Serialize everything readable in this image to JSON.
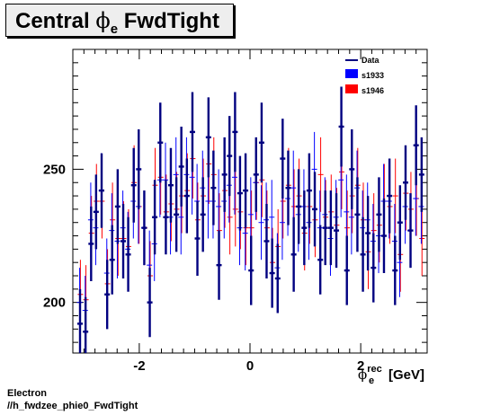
{
  "title": {
    "main": "Central",
    "phi": "ϕ",
    "sub": "e",
    "rest": "FwdTight"
  },
  "footer": {
    "line1": "Electron",
    "line2": "//h_fwdzee_phie0_FwdTight"
  },
  "colors": {
    "data": "#000080",
    "s1933": "#0000ff",
    "s1946": "#ff0000"
  },
  "chart_data": {
    "type": "scatter",
    "title": "Central ϕe FwdTight",
    "xlabel": "ϕe rec [GeV]",
    "xlabel_parts": {
      "phi": "ϕ",
      "sup": "rec",
      "sub": "e",
      "unit": "[GeV]"
    },
    "ylabel": "",
    "xlim": [
      -3.2,
      3.2
    ],
    "ylim": [
      181,
      295
    ],
    "x_ticks": [
      -2,
      0,
      2
    ],
    "x_tick_labels": [
      "-2",
      "0",
      "2"
    ],
    "y_ticks": [
      200,
      250
    ],
    "y_tick_labels": [
      "200",
      "250"
    ],
    "legend": {
      "position": "top-right",
      "entries": [
        "Data",
        "s1933",
        "s1946"
      ]
    },
    "x": [
      -3.07,
      -2.97,
      -2.87,
      -2.78,
      -2.68,
      -2.58,
      -2.49,
      -2.39,
      -2.29,
      -2.2,
      -2.1,
      -2.01,
      -1.91,
      -1.81,
      -1.72,
      -1.62,
      -1.52,
      -1.43,
      -1.33,
      -1.24,
      -1.14,
      -1.04,
      -0.95,
      -0.85,
      -0.75,
      -0.66,
      -0.56,
      -0.46,
      -0.37,
      -0.27,
      -0.18,
      -0.08,
      0.02,
      0.11,
      0.21,
      0.3,
      0.4,
      0.5,
      0.59,
      0.69,
      0.79,
      0.88,
      0.98,
      1.07,
      1.17,
      1.27,
      1.36,
      1.46,
      1.56,
      1.65,
      1.75,
      1.84,
      1.94,
      2.04,
      2.13,
      2.23,
      2.33,
      2.42,
      2.52,
      2.62,
      2.71,
      2.81,
      2.9,
      3.0,
      3.1
    ],
    "series": [
      {
        "name": "Data",
        "values": [
          192,
          189,
          222,
          234,
          242,
          203,
          216,
          236,
          223,
          218,
          244,
          250,
          228,
          200,
          232,
          260,
          232,
          244,
          233,
          251,
          240,
          264,
          224,
          233,
          262,
          243,
          214,
          248,
          255,
          264,
          241,
          242,
          212,
          248,
          260,
          223,
          211,
          209,
          254,
          243,
          218,
          236,
          228,
          242,
          235,
          216,
          228,
          228,
          227,
          266,
          212,
          250,
          233,
          218,
          226,
          213,
          233,
          225,
          240,
          212,
          230,
          245,
          227,
          259,
          248
        ],
        "errors": [
          13,
          13,
          14,
          14,
          14,
          13,
          13,
          14,
          14,
          14,
          14,
          15,
          14,
          13,
          14,
          15,
          14,
          14,
          14,
          15,
          14,
          15,
          14,
          14,
          15,
          14,
          13,
          14,
          15,
          15,
          14,
          14,
          13,
          14,
          15,
          14,
          13,
          13,
          15,
          14,
          14,
          14,
          14,
          14,
          14,
          13,
          14,
          14,
          14,
          15,
          13,
          15,
          14,
          14,
          14,
          13,
          14,
          14,
          14,
          13,
          14,
          14,
          14,
          15,
          14
        ]
      },
      {
        "name": "s1933",
        "values": [
          200,
          197,
          231,
          228,
          242,
          211,
          227,
          223,
          228,
          220,
          238,
          236,
          228,
          214,
          222,
          246,
          246,
          232,
          248,
          232,
          248,
          247,
          238,
          243,
          238,
          238,
          236,
          238,
          244,
          247,
          228,
          226,
          233,
          245,
          230,
          231,
          232,
          213,
          230,
          239,
          243,
          233,
          236,
          230,
          250,
          228,
          233,
          224,
          232,
          246,
          234,
          232,
          243,
          228,
          231,
          223,
          225,
          238,
          238,
          223,
          215,
          236,
          227,
          239,
          236
        ],
        "errors": [
          13,
          13,
          14,
          14,
          14,
          13,
          14,
          14,
          14,
          14,
          14,
          14,
          14,
          13,
          14,
          14,
          14,
          14,
          14,
          14,
          14,
          14,
          14,
          14,
          14,
          14,
          14,
          14,
          14,
          14,
          14,
          14,
          14,
          14,
          14,
          14,
          14,
          13,
          14,
          14,
          14,
          14,
          14,
          14,
          14,
          14,
          14,
          14,
          14,
          14,
          14,
          14,
          14,
          14,
          14,
          14,
          14,
          14,
          14,
          14,
          13,
          14,
          14,
          14,
          14
        ]
      },
      {
        "name": "s1946",
        "values": [
          203,
          201,
          226,
          238,
          238,
          207,
          231,
          224,
          224,
          221,
          245,
          236,
          228,
          210,
          244,
          247,
          234,
          237,
          235,
          240,
          242,
          254,
          231,
          240,
          252,
          248,
          227,
          242,
          232,
          235,
          234,
          228,
          228,
          245,
          246,
          228,
          215,
          221,
          238,
          244,
          236,
          240,
          226,
          236,
          231,
          248,
          232,
          234,
          229,
          249,
          228,
          240,
          244,
          231,
          219,
          227,
          229,
          238,
          236,
          240,
          218,
          241,
          235,
          239,
          224
        ],
        "errors": [
          13,
          13,
          14,
          14,
          14,
          13,
          14,
          14,
          14,
          14,
          14,
          14,
          14,
          13,
          14,
          14,
          14,
          14,
          14,
          14,
          14,
          15,
          14,
          14,
          15,
          14,
          14,
          14,
          14,
          14,
          14,
          14,
          14,
          14,
          14,
          14,
          13,
          14,
          14,
          14,
          14,
          14,
          14,
          14,
          14,
          14,
          14,
          14,
          14,
          14,
          14,
          14,
          14,
          14,
          14,
          14,
          14,
          14,
          14,
          14,
          14,
          14,
          14,
          14,
          14
        ]
      }
    ]
  }
}
